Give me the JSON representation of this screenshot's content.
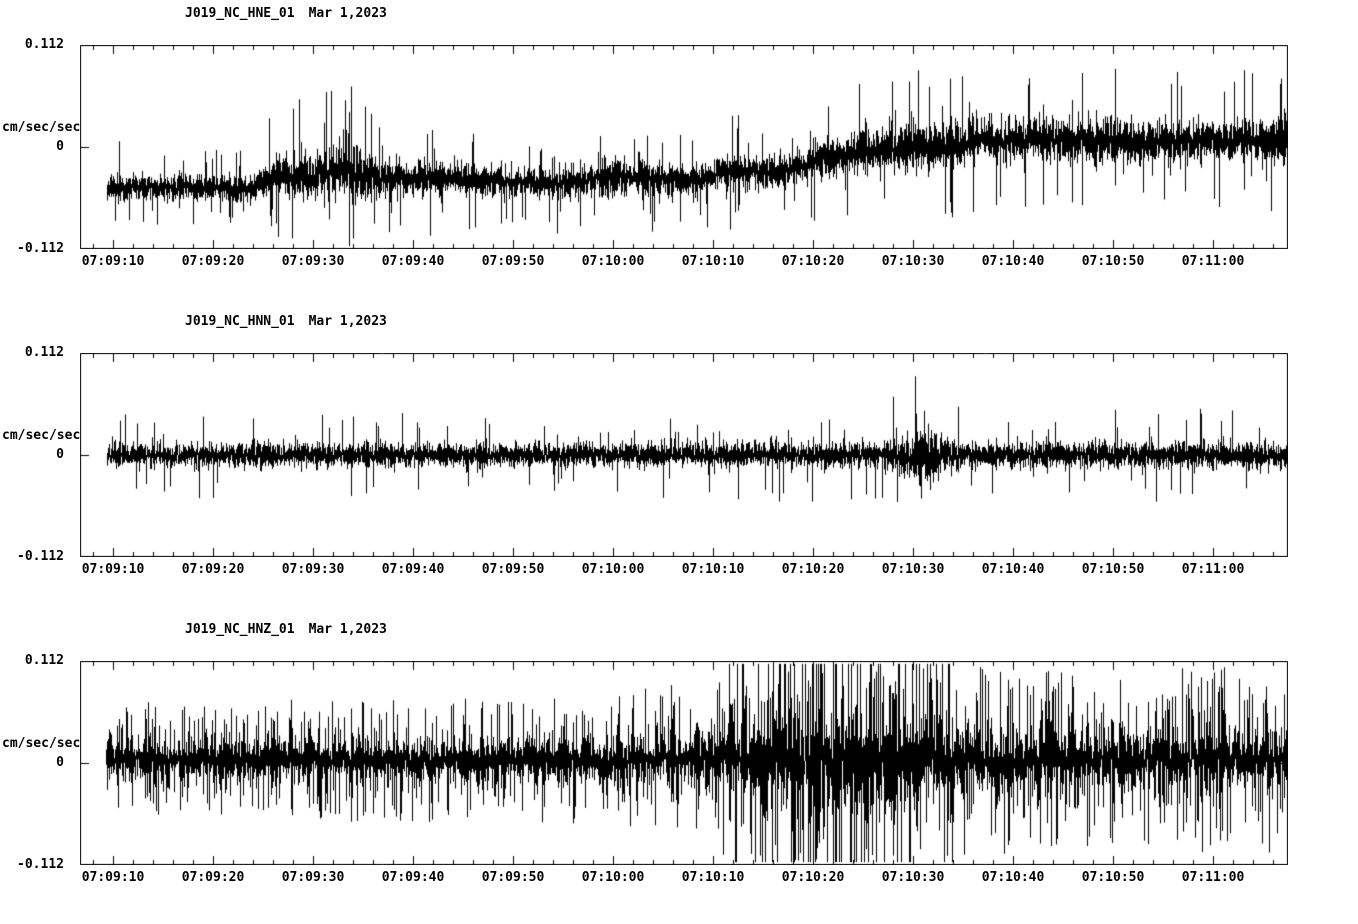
{
  "page": {
    "background": "#ffffff",
    "text_color": "#000000"
  },
  "chart_data": [
    {
      "type": "line",
      "kind": "seismogram-trace",
      "title": "J019_NC_HNE_01",
      "date": "Mar 1,2023",
      "ylabel": "cm/sec/sec",
      "ylim": [
        -0.112,
        0.112
      ],
      "ytick_labels": [
        "0.112",
        "0",
        "-0.112"
      ],
      "xtick_labels": [
        "07:09:10",
        "07:09:20",
        "07:09:30",
        "07:09:40",
        "07:09:50",
        "07:10:00",
        "07:10:10",
        "07:10:20",
        "07:10:30",
        "07:10:40",
        "07:10:50",
        "07:11:00"
      ],
      "x_window_sec": [
        6.7,
        127.5
      ],
      "xtick_start_sec": 10,
      "xtick_major_step_sec": 10,
      "xtick_minor_step_sec": 2,
      "trace": {
        "color": "#000000",
        "start_sec": 9.4,
        "seed": 101,
        "spike_prob": 0.02,
        "tail": 0.5,
        "envelope": [
          [
            9.4,
            -0.045,
            0.013
          ],
          [
            20,
            -0.046,
            0.012
          ],
          [
            24,
            -0.047,
            0.013
          ],
          [
            25.5,
            -0.034,
            0.017
          ],
          [
            28,
            -0.033,
            0.022
          ],
          [
            31,
            -0.03,
            0.026
          ],
          [
            33,
            -0.027,
            0.032
          ],
          [
            35,
            -0.033,
            0.022
          ],
          [
            38,
            -0.036,
            0.016
          ],
          [
            43,
            -0.034,
            0.016
          ],
          [
            48,
            -0.038,
            0.015
          ],
          [
            55,
            -0.04,
            0.014
          ],
          [
            58,
            -0.035,
            0.016
          ],
          [
            62,
            -0.033,
            0.016
          ],
          [
            66,
            -0.038,
            0.014
          ],
          [
            69,
            -0.036,
            0.014
          ],
          [
            70.5,
            -0.028,
            0.016
          ],
          [
            75,
            -0.027,
            0.016
          ],
          [
            78,
            -0.022,
            0.017
          ],
          [
            80,
            -0.016,
            0.019
          ],
          [
            83,
            -0.01,
            0.021
          ],
          [
            87,
            -0.003,
            0.022
          ],
          [
            92,
            0.002,
            0.023
          ],
          [
            97,
            0.006,
            0.022
          ],
          [
            103,
            0.01,
            0.023
          ],
          [
            108,
            0.007,
            0.022
          ],
          [
            113,
            0.004,
            0.021
          ],
          [
            117,
            0.009,
            0.021
          ],
          [
            122,
            0.007,
            0.02
          ],
          [
            127.5,
            0.009,
            0.022
          ]
        ],
        "spikes": [
          [
            23.0,
            -0.072
          ],
          [
            33.2,
            0.052
          ],
          [
            33.8,
            0.041
          ]
        ]
      }
    },
    {
      "type": "line",
      "kind": "seismogram-trace",
      "title": "J019_NC_HNN_01",
      "date": "Mar 1,2023",
      "ylabel": "cm/sec/sec",
      "ylim": [
        -0.112,
        0.112
      ],
      "ytick_labels": [
        "0.112",
        "0",
        "-0.112"
      ],
      "xtick_labels": [
        "07:09:10",
        "07:09:20",
        "07:09:30",
        "07:09:40",
        "07:09:50",
        "07:10:00",
        "07:10:10",
        "07:10:20",
        "07:10:30",
        "07:10:40",
        "07:10:50",
        "07:11:00"
      ],
      "x_window_sec": [
        6.7,
        127.5
      ],
      "xtick_start_sec": 10,
      "xtick_major_step_sec": 10,
      "xtick_minor_step_sec": 2,
      "trace": {
        "color": "#000000",
        "start_sec": 9.4,
        "seed": 202,
        "spike_prob": 0.012,
        "tail": 0.4,
        "envelope": [
          [
            9.4,
            0.0,
            0.012
          ],
          [
            30,
            0.0,
            0.012
          ],
          [
            60,
            0.0,
            0.012
          ],
          [
            80,
            0.0,
            0.013
          ],
          [
            87,
            0.0,
            0.013
          ],
          [
            89,
            -0.001,
            0.02
          ],
          [
            90.5,
            -0.002,
            0.03
          ],
          [
            92,
            -0.001,
            0.024
          ],
          [
            94,
            0.0,
            0.016
          ],
          [
            96,
            0.0,
            0.013
          ],
          [
            110,
            0.0,
            0.013
          ],
          [
            127.5,
            0.0,
            0.013
          ]
        ],
        "spikes": [
          [
            90.3,
            0.046
          ],
          [
            90.8,
            -0.042
          ],
          [
            91.5,
            0.035
          ]
        ]
      }
    },
    {
      "type": "line",
      "kind": "seismogram-trace",
      "title": "J019_NC_HNZ_01",
      "date": "Mar 1,2023",
      "ylabel": "cm/sec/sec",
      "ylim": [
        -0.112,
        0.112
      ],
      "ytick_labels": [
        "0.112",
        "0",
        "-0.112"
      ],
      "xtick_labels": [
        "07:09:10",
        "07:09:20",
        "07:09:30",
        "07:09:40",
        "07:09:50",
        "07:10:00",
        "07:10:10",
        "07:10:20",
        "07:10:30",
        "07:10:40",
        "07:10:50",
        "07:11:00"
      ],
      "x_window_sec": [
        6.7,
        127.5
      ],
      "xtick_start_sec": 10,
      "xtick_major_step_sec": 10,
      "xtick_minor_step_sec": 2,
      "trace": {
        "color": "#000000",
        "start_sec": 9.3,
        "seed": 303,
        "spike_prob": 0.05,
        "tail": 1.8,
        "envelope": [
          [
            9.3,
            0.004,
            0.016
          ],
          [
            20,
            0.004,
            0.016
          ],
          [
            30,
            0.004,
            0.017
          ],
          [
            40,
            0.003,
            0.017
          ],
          [
            50,
            0.004,
            0.018
          ],
          [
            60,
            0.003,
            0.019
          ],
          [
            65,
            0.004,
            0.02
          ],
          [
            70,
            0.004,
            0.024
          ],
          [
            73,
            0.003,
            0.034
          ],
          [
            75,
            0.002,
            0.046
          ],
          [
            78,
            0.002,
            0.055
          ],
          [
            81,
            0.003,
            0.052
          ],
          [
            84,
            0.003,
            0.048
          ],
          [
            87,
            0.004,
            0.044
          ],
          [
            90,
            0.004,
            0.04
          ],
          [
            93,
            0.004,
            0.034
          ],
          [
            96,
            0.004,
            0.029
          ],
          [
            100,
            0.004,
            0.026
          ],
          [
            105,
            0.004,
            0.024
          ],
          [
            110,
            0.004,
            0.024
          ],
          [
            115,
            0.004,
            0.025
          ],
          [
            120,
            0.004,
            0.026
          ],
          [
            127.5,
            0.005,
            0.026
          ]
        ],
        "spikes": [
          [
            45.2,
            0.05
          ],
          [
            60.5,
            0.055
          ],
          [
            76.5,
            0.088
          ],
          [
            78.2,
            -0.108
          ],
          [
            79.5,
            0.092
          ],
          [
            81.0,
            -0.085
          ],
          [
            83.0,
            0.086
          ],
          [
            85.3,
            -0.096
          ],
          [
            88.0,
            0.078
          ],
          [
            118.5,
            0.085
          ]
        ]
      }
    }
  ]
}
